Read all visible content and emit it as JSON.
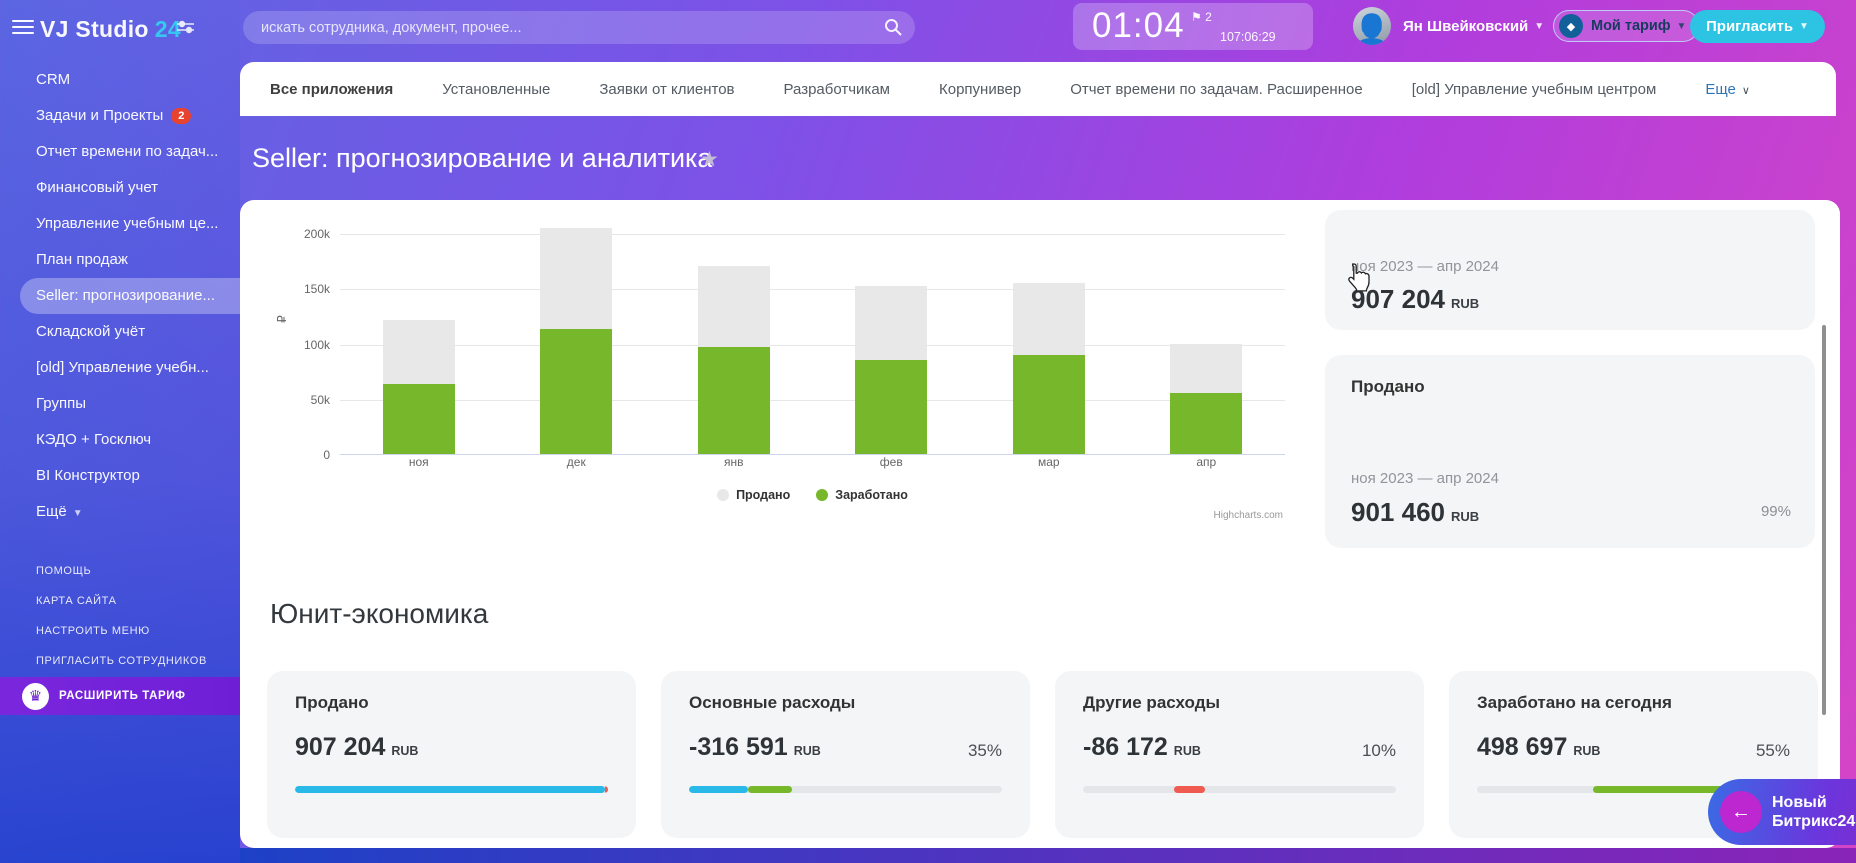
{
  "colors": {
    "accent_cyan": "#29b9e8",
    "series_gray": "#e8e8e8",
    "series_green": "#77b72b",
    "alert_red": "#f05b51",
    "badge_red": "#e8432e",
    "invite_cyan": "#2cc4e2",
    "upgrade_purple": "#7a26dd",
    "link_blue": "#2e75b6"
  },
  "topbar": {
    "logo_brand": "VJ Studio",
    "logo_suffix": "24",
    "search_placeholder": "искать сотрудника, документ, прочее...",
    "clock": {
      "time": "01:04",
      "flag": "⚑",
      "flag_count": "2",
      "total": "107:06:29"
    },
    "user_name": "Ян Швейковский",
    "tariff_label": "Мой тариф",
    "invite_label": "Пригласить"
  },
  "sidebar": {
    "items": [
      {
        "label": "CRM"
      },
      {
        "label": "Задачи и Проекты",
        "badge": "2"
      },
      {
        "label": "Отчет времени по задач..."
      },
      {
        "label": "Финансовый учет"
      },
      {
        "label": "Управление учебным це..."
      },
      {
        "label": "План продаж"
      },
      {
        "label": "Seller: прогнозирование...",
        "active": true
      },
      {
        "label": "Складской учёт"
      },
      {
        "label": "[old] Управление учебн..."
      },
      {
        "label": "Группы"
      },
      {
        "label": "КЭДО + Госключ"
      },
      {
        "label": "BI Конструктор"
      },
      {
        "label": "Ещё",
        "chevron": true
      }
    ],
    "footer_links": [
      "ПОМОЩЬ",
      "КАРТА САЙТА",
      "НАСТРОИТЬ МЕНЮ",
      "ПРИГЛАСИТЬ СОТРУДНИКОВ"
    ],
    "upgrade_label": "РАСШИРИТЬ ТАРИФ"
  },
  "tabs": {
    "items": [
      "Все приложения",
      "Установленные",
      "Заявки от клиентов",
      "Разработчикам",
      "Корпунивер",
      "Отчет времени по задачам. Расширенное",
      "[old] Управление учебным центром"
    ],
    "active_index": 0,
    "more_label": "Еще"
  },
  "page": {
    "title": "Seller: прогнозирование и аналитика"
  },
  "chart_data": {
    "type": "bar",
    "categories": [
      "ноя",
      "дек",
      "янв",
      "фев",
      "мар",
      "апр"
    ],
    "series": [
      {
        "name": "Продано",
        "color": "#e8e8e8",
        "values": [
          121000,
          205000,
          170000,
          152000,
          155000,
          100000
        ]
      },
      {
        "name": "Заработано",
        "color": "#77b72b",
        "values": [
          63000,
          113000,
          97000,
          85000,
          90000,
          55000
        ]
      }
    ],
    "title": "",
    "xlabel": "",
    "ylabel": "₽",
    "ylim": [
      0,
      220000
    ],
    "yticks": [
      {
        "v": 0,
        "label": "0"
      },
      {
        "v": 50000,
        "label": "50k"
      },
      {
        "v": 100000,
        "label": "100k"
      },
      {
        "v": 150000,
        "label": "150k"
      },
      {
        "v": 200000,
        "label": "200k"
      }
    ],
    "grid": true,
    "legend_position": "bottom",
    "credits": "Highcharts.com"
  },
  "summary_panel": {
    "card_top": {
      "period": "ноя 2023 — апр 2024",
      "value": "907 204",
      "currency": "RUB"
    },
    "card_sold": {
      "title": "Продано",
      "period": "ноя 2023 — апр 2024",
      "value": "901 460",
      "currency": "RUB",
      "percent": "99%"
    }
  },
  "unit_economics": {
    "title": "Юнит-экономика",
    "cards": [
      {
        "title": "Продано",
        "value": "907 204",
        "currency": "RUB",
        "percent": "",
        "bar": [
          {
            "color": "#29b9e8",
            "from": 0,
            "to": 99
          },
          {
            "color": "#f05b51",
            "from": 99,
            "to": 100
          }
        ]
      },
      {
        "title": "Основные расходы",
        "value": "-316 591",
        "currency": "RUB",
        "percent": "35%",
        "bar": [
          {
            "color": "#29b9e8",
            "from": 0,
            "to": 19
          },
          {
            "color": "#76b82a",
            "from": 19,
            "to": 33
          }
        ]
      },
      {
        "title": "Другие расходы",
        "value": "-86 172",
        "currency": "RUB",
        "percent": "10%",
        "bar": [
          {
            "color": "#f05b51",
            "from": 29,
            "to": 39
          }
        ]
      },
      {
        "title": "Заработано на сегодня",
        "value": "498 697",
        "currency": "RUB",
        "percent": "55%",
        "bar": [
          {
            "color": "#76b82a",
            "from": 37,
            "to": 95
          }
        ]
      }
    ]
  },
  "floating_widget": {
    "line1": "Новый",
    "line2": "Битрикс24"
  }
}
